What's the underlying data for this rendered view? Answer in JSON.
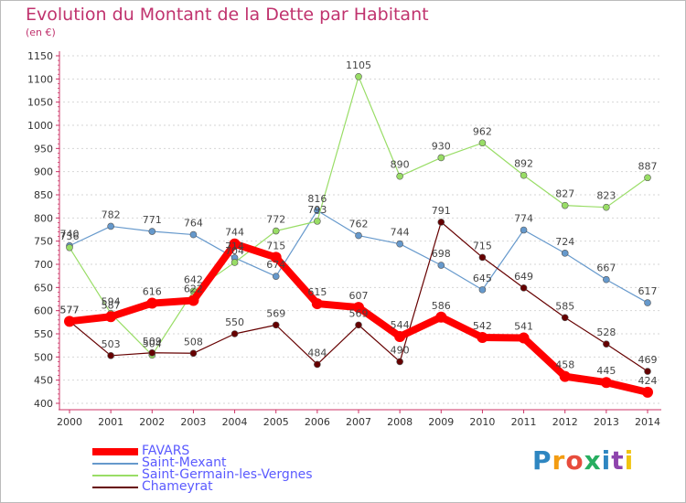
{
  "title": "Evolution du Montant de la Dette par Habitant",
  "subtitle": "(en €)",
  "logo": "Proxiti",
  "chart_data": {
    "type": "line",
    "title": "Evolution du Montant de la Dette par Habitant",
    "subtitle": "(en €)",
    "xlabel": "",
    "ylabel": "",
    "x": [
      "2000",
      "2001",
      "2002",
      "2003",
      "2004",
      "2005",
      "2006",
      "2007",
      "2008",
      "2009",
      "2010",
      "2011",
      "2012",
      "2013",
      "2014"
    ],
    "ylim": [
      400,
      1150
    ],
    "yticks": [
      400,
      450,
      500,
      550,
      600,
      650,
      700,
      750,
      800,
      850,
      900,
      950,
      1000,
      1050,
      1100,
      1150
    ],
    "grid": "horizontal dashed",
    "legend": "bottom-left",
    "series": [
      {
        "name": "FAVARS",
        "color": "#ff0000",
        "values": [
          577,
          587,
          616,
          622,
          744,
          715,
          615,
          607,
          544,
          586,
          542,
          541,
          458,
          445,
          424
        ]
      },
      {
        "name": "Saint-Mexant",
        "color": "#6699cc",
        "values": [
          740,
          782,
          771,
          764,
          714,
          674,
          816,
          762,
          744,
          698,
          645,
          774,
          724,
          667,
          617
        ]
      },
      {
        "name": "Saint-Germain-les-Vergnes",
        "color": "#99dd66",
        "values": [
          736,
          594,
          504,
          642,
          704,
          772,
          793,
          1105,
          890,
          930,
          962,
          892,
          827,
          823,
          887
        ]
      },
      {
        "name": "Chameyrat",
        "color": "#660000",
        "values": [
          577,
          503,
          509,
          508,
          550,
          569,
          484,
          569,
          490,
          791,
          715,
          649,
          585,
          528,
          469
        ]
      }
    ]
  }
}
